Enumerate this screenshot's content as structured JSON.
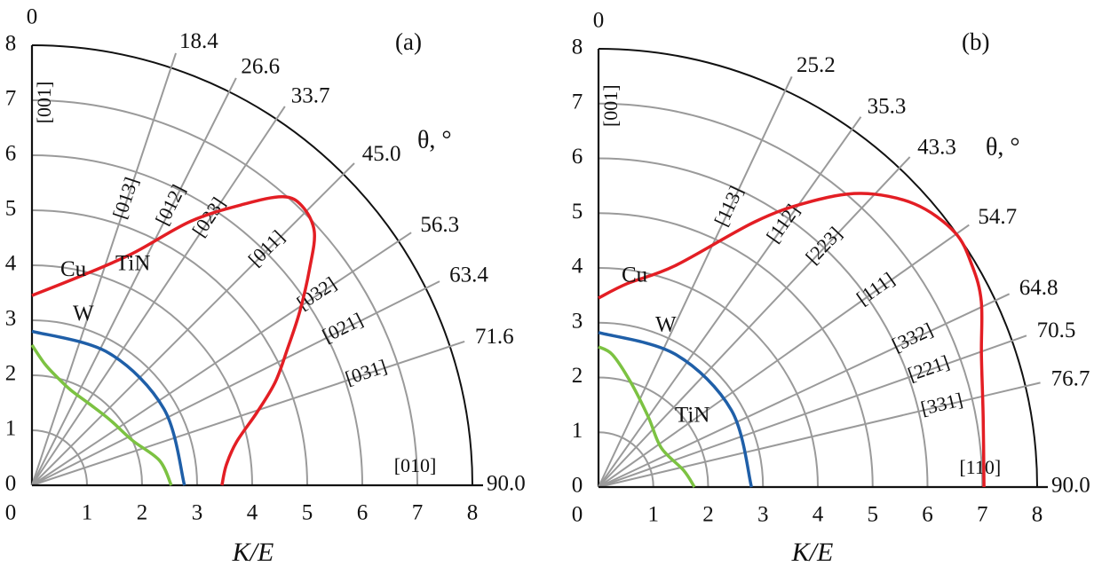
{
  "chart_data": [
    {
      "type": "polar",
      "panel_label": "(a)",
      "theta_label": "θ, °",
      "xlabel": "K/E",
      "xlim": [
        0,
        8
      ],
      "ylim": [
        0,
        8
      ],
      "xticks": [
        0,
        1,
        2,
        3,
        4,
        5,
        6,
        7,
        8
      ],
      "yticks": [
        0,
        1,
        2,
        3,
        4,
        5,
        6,
        7,
        8
      ],
      "thetalim": [
        0,
        90
      ],
      "thetaticks": [
        0,
        18.4,
        26.6,
        33.7,
        {
          "value": 45,
          "label": "45.0"
        },
        56.3,
        63.4,
        71.6,
        {
          "value": 90,
          "label": "90.0"
        }
      ],
      "directions": [
        "[001]",
        "[013]",
        "[012]",
        "[023]",
        "[011]",
        "[032]",
        "[021]",
        "[031]",
        "[010]"
      ],
      "series": [
        {
          "name": "Cu",
          "color": "#e31e24",
          "theta": [
            0,
            13,
            23.5,
            31,
            37,
            41,
            44,
            48,
            52,
            57,
            62,
            67,
            72,
            78,
            84,
            90
          ],
          "r": [
            3.45,
            3.9,
            4.6,
            5.6,
            6.4,
            6.95,
            7.06,
            6.9,
            6.4,
            5.8,
            5.25,
            4.8,
            4.3,
            3.8,
            3.55,
            3.45
          ]
        },
        {
          "name": "W",
          "color": "#1f5fa8",
          "theta": [
            0,
            30,
            60,
            90
          ],
          "r": [
            2.8,
            2.78,
            2.77,
            2.77
          ]
        },
        {
          "name": "TiN",
          "color": "#7cc242",
          "theta": [
            0,
            6,
            13,
            22,
            35,
            50,
            66,
            79,
            90
          ],
          "r": [
            2.55,
            2.22,
            2.02,
            1.87,
            1.81,
            1.85,
            2.0,
            2.36,
            2.53
          ]
        }
      ]
    },
    {
      "type": "polar",
      "panel_label": "(b)",
      "theta_label": "θ, °",
      "xlabel": "K/E",
      "xlim": [
        0,
        8
      ],
      "ylim": [
        0,
        8
      ],
      "xticks": [
        0,
        1,
        2,
        3,
        4,
        5,
        6,
        7,
        8
      ],
      "yticks": [
        0,
        1,
        2,
        3,
        4,
        5,
        6,
        7,
        8
      ],
      "thetalim": [
        0,
        90
      ],
      "thetaticks": [
        0,
        25.2,
        35.3,
        43.3,
        54.7,
        64.8,
        70.5,
        76.7,
        {
          "value": 90,
          "label": "90.0"
        }
      ],
      "directions": [
        "[001]",
        "[113]",
        "[112]",
        "[223]",
        "[111]",
        "[332]",
        "[221]",
        "[331]",
        "[110]"
      ],
      "series": [
        {
          "name": "Cu",
          "color": "#e31e24",
          "theta": [
            0,
            8,
            19,
            30.5,
            36.3,
            41.8,
            48.1,
            54.4,
            59.4,
            64.1,
            70.9,
            79.7,
            90
          ],
          "r": [
            3.45,
            3.75,
            4.27,
            5.62,
            6.45,
            7.19,
            7.74,
            7.99,
            7.92,
            7.76,
            7.39,
            7.13,
            7.03
          ]
        },
        {
          "name": "W",
          "color": "#1f5fa8",
          "theta": [
            0,
            30,
            60,
            90
          ],
          "r": [
            2.82,
            2.8,
            2.8,
            2.79
          ]
        },
        {
          "name": "TiN",
          "color": "#7cc242",
          "theta": [
            0,
            6,
            16.8,
            35.3,
            58,
            78.8,
            90
          ],
          "r": [
            2.56,
            2.43,
            2.01,
            1.57,
            1.35,
            1.58,
            1.75
          ]
        }
      ]
    }
  ]
}
